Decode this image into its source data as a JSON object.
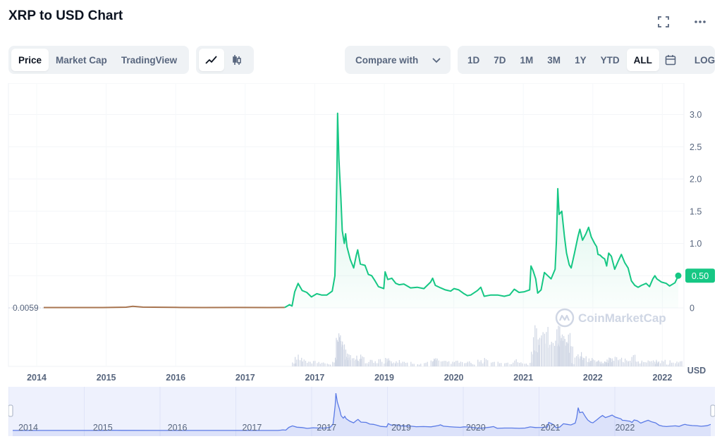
{
  "header": {
    "title": "XRP to USD Chart",
    "fullscreen_icon": "fullscreen-icon",
    "more_icon": "more-horizontal-icon"
  },
  "tabs": {
    "items": [
      "Price",
      "Market Cap",
      "TradingView"
    ],
    "active": "Price"
  },
  "chart_type_toggle": {
    "items": [
      "line-chart-icon",
      "candlestick-icon"
    ],
    "active": "line-chart-icon"
  },
  "compare": {
    "label": "Compare with",
    "icon": "chevron-down-icon"
  },
  "ranges": {
    "items": [
      "1D",
      "7D",
      "1M",
      "3M",
      "1Y",
      "YTD",
      "ALL"
    ],
    "active": "ALL",
    "calendar_icon": "calendar-icon",
    "log_label": "LOG"
  },
  "colors": {
    "line": "#16c784",
    "line_early": "#a87550",
    "navigator": "#5b7be6",
    "label_bg": "#16c784",
    "volume": "#cfd6e4"
  },
  "watermark": "CoinMarketCap",
  "chart_data": {
    "type": "line",
    "currency": "USD",
    "yticks": [
      "0",
      "0.50",
      "1.0",
      "1.5",
      "2.0",
      "2.5",
      "3.0"
    ],
    "ylim": [
      0,
      3.3
    ],
    "xticks": [
      "2014",
      "2015",
      "2016",
      "2017",
      "2017",
      "2019",
      "2020",
      "2021",
      "2022",
      "2022"
    ],
    "first_price_label": "0.0059",
    "last_price_label": "0.50",
    "grid": true,
    "series": [
      {
        "points": [
          [
            2013.62,
            0.0059
          ],
          [
            2014.0,
            0.0057
          ],
          [
            2014.5,
            0.0055
          ],
          [
            2014.85,
            0.011
          ],
          [
            2014.95,
            0.025
          ],
          [
            2015.1,
            0.012
          ],
          [
            2015.6,
            0.008
          ],
          [
            2016.0,
            0.006
          ],
          [
            2016.5,
            0.007
          ],
          [
            2017.0,
            0.006
          ],
          [
            2017.22,
            0.0065
          ],
          [
            2017.26,
            0.03
          ],
          [
            2017.29,
            0.05
          ],
          [
            2017.33,
            0.03
          ],
          [
            2017.37,
            0.25
          ],
          [
            2017.42,
            0.38
          ],
          [
            2017.48,
            0.27
          ],
          [
            2017.55,
            0.24
          ],
          [
            2017.62,
            0.17
          ],
          [
            2017.7,
            0.22
          ],
          [
            2017.77,
            0.2
          ],
          [
            2017.85,
            0.2
          ],
          [
            2017.93,
            0.26
          ],
          [
            2017.97,
            0.5
          ],
          [
            2017.985,
            1.2
          ],
          [
            2018.0,
            2.05
          ],
          [
            2018.01,
            3.02
          ],
          [
            2018.03,
            2.3
          ],
          [
            2018.06,
            1.7
          ],
          [
            2018.08,
            1.2
          ],
          [
            2018.11,
            1.0
          ],
          [
            2018.13,
            1.15
          ],
          [
            2018.15,
            0.95
          ],
          [
            2018.2,
            0.75
          ],
          [
            2018.25,
            0.62
          ],
          [
            2018.29,
            0.82
          ],
          [
            2018.31,
            0.9
          ],
          [
            2018.35,
            0.68
          ],
          [
            2018.42,
            0.66
          ],
          [
            2018.47,
            0.52
          ],
          [
            2018.52,
            0.5
          ],
          [
            2018.57,
            0.42
          ],
          [
            2018.62,
            0.33
          ],
          [
            2018.7,
            0.3
          ],
          [
            2018.72,
            0.56
          ],
          [
            2018.76,
            0.44
          ],
          [
            2018.82,
            0.46
          ],
          [
            2018.88,
            0.38
          ],
          [
            2018.93,
            0.36
          ],
          [
            2019.0,
            0.37
          ],
          [
            2019.1,
            0.31
          ],
          [
            2019.2,
            0.32
          ],
          [
            2019.3,
            0.3
          ],
          [
            2019.4,
            0.4
          ],
          [
            2019.43,
            0.46
          ],
          [
            2019.47,
            0.35
          ],
          [
            2019.55,
            0.31
          ],
          [
            2019.62,
            0.28
          ],
          [
            2019.7,
            0.26
          ],
          [
            2019.75,
            0.3
          ],
          [
            2019.82,
            0.28
          ],
          [
            2019.9,
            0.22
          ],
          [
            2019.95,
            0.19
          ],
          [
            2020.0,
            0.2
          ],
          [
            2020.1,
            0.27
          ],
          [
            2020.15,
            0.32
          ],
          [
            2020.2,
            0.18
          ],
          [
            2020.3,
            0.2
          ],
          [
            2020.4,
            0.2
          ],
          [
            2020.5,
            0.18
          ],
          [
            2020.58,
            0.2
          ],
          [
            2020.65,
            0.29
          ],
          [
            2020.72,
            0.24
          ],
          [
            2020.8,
            0.25
          ],
          [
            2020.88,
            0.28
          ],
          [
            2020.9,
            0.65
          ],
          [
            2020.93,
            0.58
          ],
          [
            2020.97,
            0.45
          ],
          [
            2021.0,
            0.23
          ],
          [
            2021.05,
            0.28
          ],
          [
            2021.1,
            0.55
          ],
          [
            2021.15,
            0.5
          ],
          [
            2021.2,
            0.45
          ],
          [
            2021.26,
            0.6
          ],
          [
            2021.28,
            1.05
          ],
          [
            2021.3,
            1.85
          ],
          [
            2021.32,
            1.45
          ],
          [
            2021.36,
            1.5
          ],
          [
            2021.4,
            1.1
          ],
          [
            2021.43,
            0.85
          ],
          [
            2021.47,
            0.67
          ],
          [
            2021.5,
            0.62
          ],
          [
            2021.55,
            0.85
          ],
          [
            2021.6,
            1.1
          ],
          [
            2021.63,
            1.22
          ],
          [
            2021.67,
            1.05
          ],
          [
            2021.72,
            1.15
          ],
          [
            2021.76,
            1.25
          ],
          [
            2021.8,
            1.1
          ],
          [
            2021.85,
            1.0
          ],
          [
            2021.88,
            0.95
          ],
          [
            2021.9,
            0.83
          ],
          [
            2021.93,
            0.82
          ],
          [
            2021.97,
            0.78
          ],
          [
            2022.0,
            0.76
          ],
          [
            2022.03,
            0.65
          ],
          [
            2022.06,
            0.85
          ],
          [
            2022.1,
            0.8
          ],
          [
            2022.15,
            0.6
          ],
          [
            2022.2,
            0.72
          ],
          [
            2022.25,
            0.83
          ],
          [
            2022.3,
            0.7
          ],
          [
            2022.35,
            0.62
          ],
          [
            2022.4,
            0.42
          ],
          [
            2022.45,
            0.35
          ],
          [
            2022.5,
            0.32
          ],
          [
            2022.55,
            0.35
          ],
          [
            2022.62,
            0.38
          ],
          [
            2022.67,
            0.33
          ],
          [
            2022.72,
            0.45
          ],
          [
            2022.75,
            0.5
          ],
          [
            2022.78,
            0.45
          ],
          [
            2022.85,
            0.4
          ],
          [
            2022.92,
            0.38
          ],
          [
            2022.97,
            0.34
          ],
          [
            2023.05,
            0.39
          ],
          [
            2023.1,
            0.5
          ]
        ]
      }
    ]
  }
}
